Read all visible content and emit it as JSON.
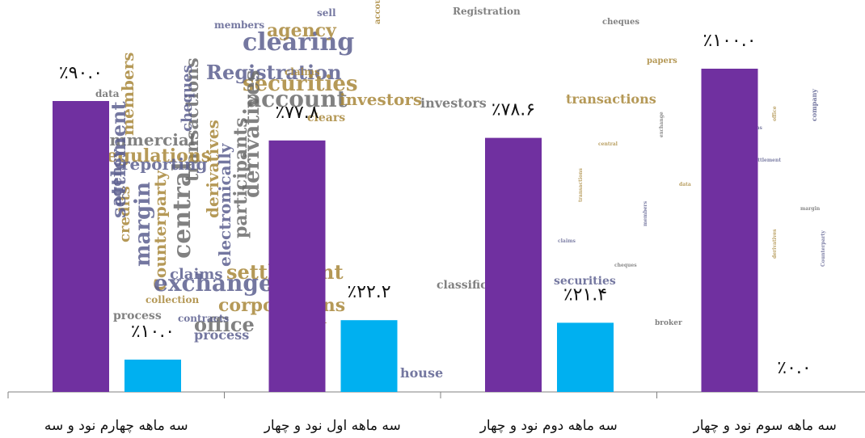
{
  "colors": {
    "series_a": "#7030a0",
    "series_b": "#00b0f0",
    "axis": "#808080",
    "wordcloud_blue": "#5c5f8f",
    "wordcloud_gold": "#a8873a",
    "wordcloud_gray": "#6b6b6b"
  },
  "chart_data": {
    "type": "bar",
    "categories": [
      "سه ماهه چهارم نود و سه",
      "سه ماهه اول نود و چهار",
      "سه ماهه دوم نود و چهار",
      "سه ماهه سوم نود و چهار"
    ],
    "series": [
      {
        "values": [
          90.0,
          77.8,
          78.6,
          100.0
        ]
      },
      {
        "values": [
          10.0,
          22.2,
          21.4,
          0.0
        ]
      }
    ],
    "data_labels": [
      [
        "٪۹۰.۰",
        "٪۷۷.۸",
        "٪۷۸.۶",
        "٪۱۰۰.۰"
      ],
      [
        "٪۱۰.۰",
        "٪۲۲.۲",
        "٪۲۱.۴",
        "٪۰.۰"
      ]
    ],
    "ylim": [
      0,
      100
    ],
    "grid": false,
    "title": "",
    "xlabel": "",
    "ylabel": ""
  },
  "background_words": [
    "clearing",
    "agency",
    "account",
    "Registration",
    "securities",
    "investors",
    "sell",
    "claims",
    "transactions",
    "cheques",
    "members",
    "data",
    "process",
    "settlement",
    "derivatives",
    "margin",
    "Counterparty",
    "central",
    "exchange",
    "corporations",
    "office",
    "house",
    "regulations",
    "commercial",
    "reporting",
    "credits",
    "participants",
    "electronically",
    "collection",
    "classification",
    "contracts",
    "papers",
    "broker",
    "company",
    "clears"
  ]
}
